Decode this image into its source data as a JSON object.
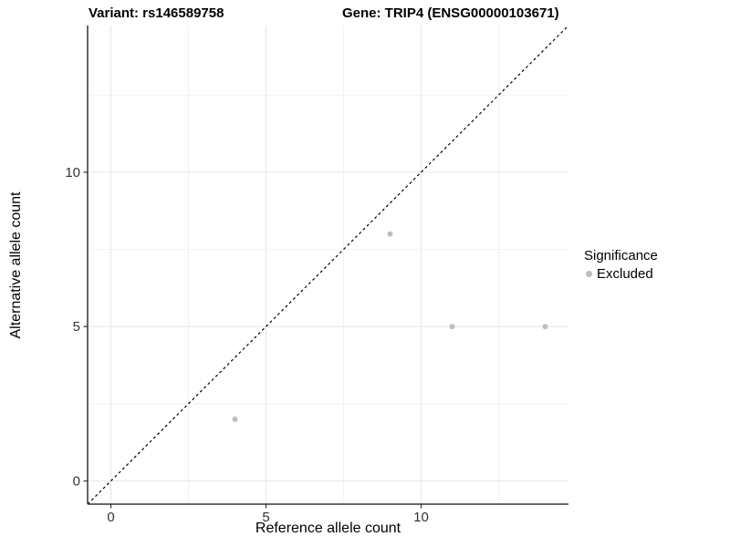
{
  "titles": {
    "variant": "Variant: rs146589758",
    "gene": "Gene: TRIP4 (ENSG00000103671)"
  },
  "chart_data": {
    "type": "scatter",
    "xlabel": "Reference allele count",
    "ylabel": "Alternative allele count",
    "xlim": [
      -0.75,
      14.75
    ],
    "ylim": [
      -0.75,
      14.75
    ],
    "x_ticks": [
      0,
      5,
      10
    ],
    "y_ticks": [
      0,
      5,
      10
    ],
    "x_minor_ticks": [
      2.5,
      7.5,
      12.5
    ],
    "y_minor_ticks": [
      2.5,
      7.5,
      12.5
    ],
    "grid": true,
    "series": [
      {
        "name": "Excluded",
        "color": "#bebebe",
        "points": [
          [
            4,
            2
          ],
          [
            9,
            8
          ],
          [
            11,
            5
          ],
          [
            14,
            5
          ]
        ]
      }
    ],
    "reference_line": {
      "kind": "identity",
      "style": "dashed",
      "color": "#000000"
    },
    "legend": {
      "title": "Significance",
      "position": "right",
      "items": [
        {
          "label": "Excluded",
          "color": "#bebebe"
        }
      ]
    },
    "colors": {
      "axis": "#333333",
      "tick_label": "#333333",
      "grid_major": "#e5e5e5",
      "grid_minor": "#f2f2f2"
    }
  }
}
